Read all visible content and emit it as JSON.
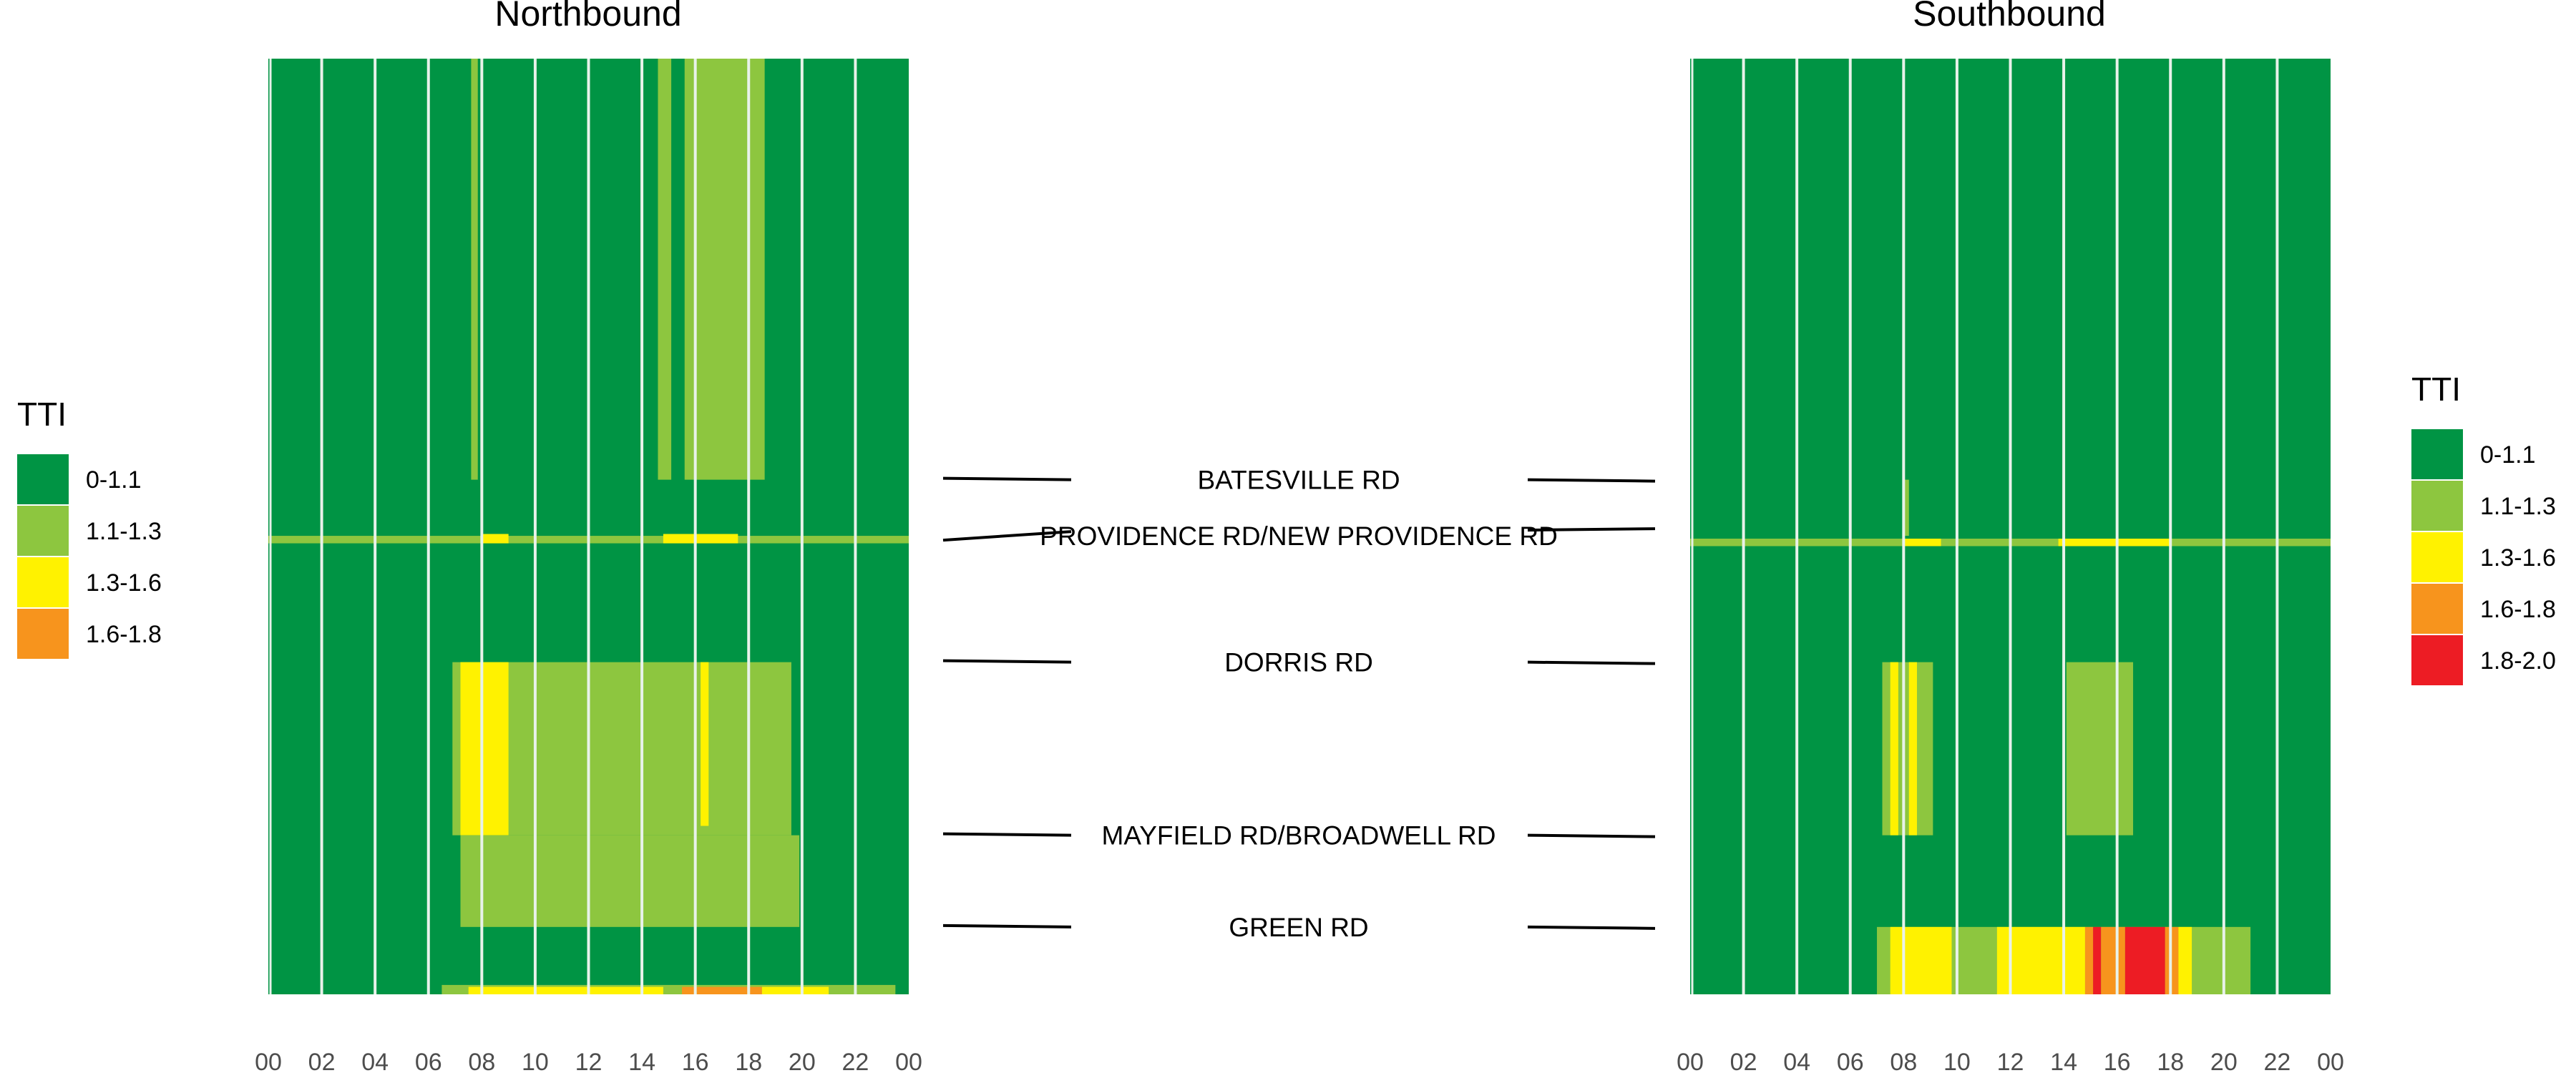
{
  "palette": {
    "green": "#009444",
    "lightgreen": "#8DC63F",
    "yellow": "#FFF200",
    "orange": "#F7941D",
    "red": "#ED1C24",
    "grid": "#E8F2EA",
    "line": "#000000"
  },
  "chart_data": [
    {
      "type": "heatmap",
      "title": "Northbound",
      "x_ticks": [
        "00",
        "02",
        "04",
        "06",
        "08",
        "10",
        "12",
        "14",
        "16",
        "18",
        "20",
        "22",
        "00"
      ],
      "xlim": [
        0,
        24
      ],
      "y_direction": "distance along route, top to bottom",
      "background_class": "0-1.1",
      "cells": [
        {
          "x0": 7.6,
          "x1": 7.85,
          "y0": 0.0,
          "y1": 0.45,
          "class": "1.1-1.3"
        },
        {
          "x0": 14.6,
          "x1": 15.1,
          "y0": 0.0,
          "y1": 0.45,
          "class": "1.1-1.3"
        },
        {
          "x0": 15.6,
          "x1": 18.6,
          "y0": 0.0,
          "y1": 0.45,
          "class": "1.1-1.3"
        },
        {
          "x0": 0.0,
          "x1": 24.0,
          "y0": 0.51,
          "y1": 0.518,
          "class": "1.1-1.3"
        },
        {
          "x0": 8.0,
          "x1": 9.0,
          "y0": 0.508,
          "y1": 0.518,
          "class": "1.3-1.6"
        },
        {
          "x0": 14.8,
          "x1": 17.6,
          "y0": 0.508,
          "y1": 0.518,
          "class": "1.3-1.6"
        },
        {
          "x0": 6.9,
          "x1": 19.6,
          "y0": 0.645,
          "y1": 0.83,
          "class": "1.1-1.3"
        },
        {
          "x0": 7.2,
          "x1": 9.0,
          "y0": 0.645,
          "y1": 0.83,
          "class": "1.3-1.6"
        },
        {
          "x0": 16.2,
          "x1": 16.5,
          "y0": 0.645,
          "y1": 0.82,
          "class": "1.3-1.6"
        },
        {
          "x0": 7.2,
          "x1": 19.9,
          "y0": 0.83,
          "y1": 0.928,
          "class": "1.1-1.3"
        },
        {
          "x0": 6.5,
          "x1": 23.5,
          "y0": 0.99,
          "y1": 1.0,
          "class": "1.1-1.3"
        },
        {
          "x0": 7.5,
          "x1": 14.8,
          "y0": 0.992,
          "y1": 1.0,
          "class": "1.3-1.6"
        },
        {
          "x0": 15.5,
          "x1": 18.5,
          "y0": 0.992,
          "y1": 1.0,
          "class": "1.6-1.8"
        },
        {
          "x0": 18.5,
          "x1": 21.0,
          "y0": 0.992,
          "y1": 1.0,
          "class": "1.3-1.6"
        }
      ]
    },
    {
      "type": "heatmap",
      "title": "Southbound",
      "x_ticks": [
        "00",
        "02",
        "04",
        "06",
        "08",
        "10",
        "12",
        "14",
        "16",
        "18",
        "20",
        "22",
        "00"
      ],
      "xlim": [
        0,
        24
      ],
      "y_direction": "distance along route, top to bottom",
      "background_class": "0-1.1",
      "cells": [
        {
          "x0": 8.0,
          "x1": 8.2,
          "y0": 0.45,
          "y1": 0.51,
          "class": "1.1-1.3"
        },
        {
          "x0": 0.0,
          "x1": 24.0,
          "y0": 0.513,
          "y1": 0.521,
          "class": "1.1-1.3"
        },
        {
          "x0": 8.0,
          "x1": 9.4,
          "y0": 0.513,
          "y1": 0.521,
          "class": "1.3-1.6"
        },
        {
          "x0": 13.8,
          "x1": 18.0,
          "y0": 0.513,
          "y1": 0.521,
          "class": "1.3-1.6"
        },
        {
          "x0": 7.2,
          "x1": 9.1,
          "y0": 0.645,
          "y1": 0.83,
          "class": "1.1-1.3"
        },
        {
          "x0": 7.5,
          "x1": 7.8,
          "y0": 0.645,
          "y1": 0.83,
          "class": "1.3-1.6"
        },
        {
          "x0": 8.2,
          "x1": 8.5,
          "y0": 0.645,
          "y1": 0.83,
          "class": "1.3-1.6"
        },
        {
          "x0": 14.1,
          "x1": 16.6,
          "y0": 0.645,
          "y1": 0.83,
          "class": "1.1-1.3"
        },
        {
          "x0": 7.0,
          "x1": 21.0,
          "y0": 0.928,
          "y1": 1.0,
          "class": "1.1-1.3"
        },
        {
          "x0": 7.5,
          "x1": 9.8,
          "y0": 0.928,
          "y1": 1.0,
          "class": "1.3-1.6"
        },
        {
          "x0": 11.5,
          "x1": 14.8,
          "y0": 0.928,
          "y1": 1.0,
          "class": "1.3-1.6"
        },
        {
          "x0": 14.8,
          "x1": 15.1,
          "y0": 0.928,
          "y1": 1.0,
          "class": "1.6-1.8"
        },
        {
          "x0": 15.1,
          "x1": 15.4,
          "y0": 0.928,
          "y1": 1.0,
          "class": "1.8-2.0"
        },
        {
          "x0": 15.4,
          "x1": 16.3,
          "y0": 0.928,
          "y1": 1.0,
          "class": "1.6-1.8"
        },
        {
          "x0": 16.3,
          "x1": 17.8,
          "y0": 0.928,
          "y1": 1.0,
          "class": "1.8-2.0"
        },
        {
          "x0": 17.8,
          "x1": 18.3,
          "y0": 0.928,
          "y1": 1.0,
          "class": "1.6-1.8"
        },
        {
          "x0": 18.3,
          "x1": 18.8,
          "y0": 0.928,
          "y1": 1.0,
          "class": "1.3-1.6"
        }
      ]
    }
  ],
  "legend_left": {
    "title": "TTI",
    "items": [
      {
        "label": "0-1.1",
        "class": "0-1.1"
      },
      {
        "label": "1.1-1.3",
        "class": "1.1-1.3"
      },
      {
        "label": "1.3-1.6",
        "class": "1.3-1.6"
      },
      {
        "label": "1.6-1.8",
        "class": "1.6-1.8"
      }
    ]
  },
  "legend_right": {
    "title": "TTI",
    "items": [
      {
        "label": "0-1.1",
        "class": "0-1.1"
      },
      {
        "label": "1.1-1.3",
        "class": "1.1-1.3"
      },
      {
        "label": "1.3-1.6",
        "class": "1.3-1.6"
      },
      {
        "label": "1.6-1.8",
        "class": "1.6-1.8"
      },
      {
        "label": "1.8-2.0",
        "class": "1.8-2.0"
      }
    ]
  },
  "class_colors": {
    "0-1.1": "#009444",
    "1.1-1.3": "#8DC63F",
    "1.3-1.6": "#FFF200",
    "1.6-1.8": "#F7941D",
    "1.8-2.0": "#ED1C24"
  },
  "roads": [
    {
      "label": "BATESVILLE RD",
      "pos": 0.45
    },
    {
      "label": "PROVIDENCE RD/NEW PROVIDENCE RD",
      "pos": 0.51
    },
    {
      "label": "DORRIS RD",
      "pos": 0.645
    },
    {
      "label": "MAYFIELD RD/BROADWELL RD",
      "pos": 0.83
    },
    {
      "label": "GREEN RD",
      "pos": 0.928
    }
  ]
}
